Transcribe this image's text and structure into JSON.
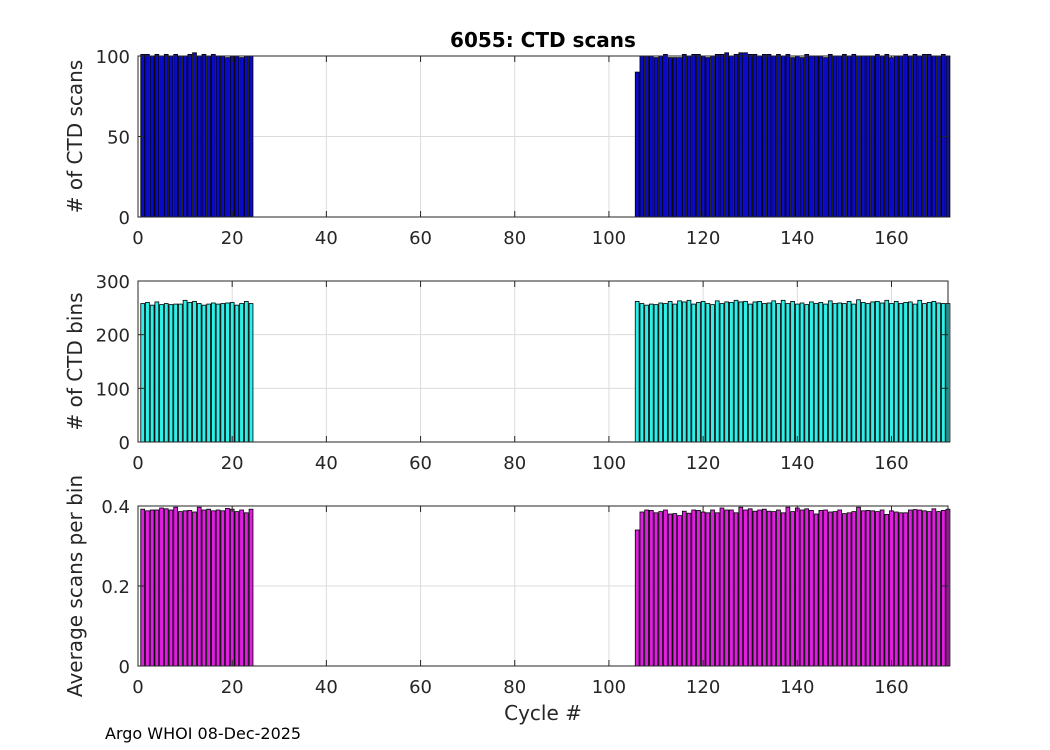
{
  "footer": "Argo WHOI 08-Dec-2025",
  "colors": {
    "scans": "#0a0ac8",
    "bins": "#2ef0e8",
    "avg": "#e01ee0",
    "edge": "#000000",
    "grid": "#dcdcdc"
  },
  "chart_data": [
    {
      "type": "bar",
      "title": "6055: CTD scans",
      "xlabel": "",
      "ylabel": "# of CTD scans",
      "xlim": [
        0,
        172
      ],
      "ylim": [
        0,
        100
      ],
      "xticks": [
        "0",
        "20",
        "40",
        "60",
        "80",
        "100",
        "120",
        "140",
        "160"
      ],
      "yticks": [
        "0",
        "50",
        "100"
      ],
      "series": [
        {
          "name": "cycles 1-24",
          "x_start": 1,
          "values": [
            101,
            101,
            100,
            101,
            100,
            101,
            100,
            101,
            100,
            100,
            101,
            102,
            100,
            101,
            100,
            101,
            100,
            100,
            99,
            100,
            100,
            99,
            100,
            100
          ]
        },
        {
          "name": "cycles 106-172",
          "x_start": 106,
          "values": [
            90,
            100,
            100,
            100,
            99,
            100,
            101,
            99,
            99,
            99,
            101,
            100,
            101,
            101,
            100,
            99,
            100,
            101,
            101,
            102,
            100,
            101,
            102,
            102,
            101,
            101,
            100,
            101,
            101,
            100,
            101,
            100,
            101,
            99,
            100,
            99,
            101,
            100,
            100,
            100,
            99,
            101,
            100,
            100,
            101,
            100,
            101,
            100,
            100,
            100,
            100,
            101,
            100,
            101,
            99,
            100,
            100,
            101,
            100,
            101,
            100,
            101,
            101,
            100,
            100,
            101,
            100
          ]
        }
      ]
    },
    {
      "type": "bar",
      "title": "",
      "xlabel": "",
      "ylabel": "# of CTD bins",
      "xlim": [
        0,
        172
      ],
      "ylim": [
        0,
        300
      ],
      "xticks": [
        "0",
        "20",
        "40",
        "60",
        "80",
        "100",
        "120",
        "140",
        "160"
      ],
      "yticks": [
        "0",
        "100",
        "200",
        "300"
      ],
      "series": [
        {
          "name": "cycles 1-24",
          "x_start": 1,
          "values": [
            258,
            260,
            255,
            261,
            256,
            258,
            256,
            257,
            257,
            264,
            260,
            262,
            258,
            255,
            257,
            259,
            257,
            258,
            259,
            260,
            255,
            258,
            262,
            258
          ]
        },
        {
          "name": "cycles 106-172",
          "x_start": 106,
          "values": [
            262,
            258,
            255,
            257,
            256,
            259,
            258,
            262,
            257,
            263,
            261,
            264,
            257,
            260,
            262,
            258,
            256,
            263,
            258,
            261,
            260,
            264,
            261,
            262,
            257,
            261,
            262,
            258,
            259,
            263,
            258,
            264,
            258,
            262,
            257,
            259,
            256,
            261,
            258,
            260,
            257,
            263,
            258,
            259,
            258,
            262,
            257,
            265,
            260,
            258,
            261,
            262,
            259,
            264,
            258,
            262,
            258,
            260,
            261,
            257,
            264,
            258,
            260,
            262,
            259,
            258,
            258
          ]
        }
      ]
    },
    {
      "type": "bar",
      "title": "",
      "xlabel": "Cycle #",
      "ylabel": "Average scans per bin",
      "xlim": [
        0,
        172
      ],
      "ylim": [
        0,
        0.4
      ],
      "xticks": [
        "0",
        "20",
        "40",
        "60",
        "80",
        "100",
        "120",
        "140",
        "160"
      ],
      "yticks": [
        "0",
        "0.2",
        "0.4"
      ],
      "series": [
        {
          "name": "cycles 1-24",
          "x_start": 1,
          "values": [
            0.392,
            0.388,
            0.39,
            0.39,
            0.395,
            0.393,
            0.39,
            0.397,
            0.386,
            0.388,
            0.389,
            0.385,
            0.397,
            0.39,
            0.392,
            0.388,
            0.39,
            0.388,
            0.394,
            0.392,
            0.386,
            0.39,
            0.383,
            0.392
          ]
        },
        {
          "name": "cycles 106-172",
          "x_start": 106,
          "values": [
            0.34,
            0.385,
            0.39,
            0.389,
            0.383,
            0.386,
            0.39,
            0.38,
            0.381,
            0.376,
            0.387,
            0.382,
            0.39,
            0.389,
            0.385,
            0.383,
            0.39,
            0.383,
            0.395,
            0.39,
            0.39,
            0.383,
            0.397,
            0.39,
            0.393,
            0.387,
            0.39,
            0.392,
            0.387,
            0.386,
            0.39,
            0.383,
            0.397,
            0.386,
            0.395,
            0.39,
            0.393,
            0.389,
            0.38,
            0.389,
            0.39,
            0.385,
            0.386,
            0.39,
            0.381,
            0.383,
            0.386,
            0.397,
            0.388,
            0.389,
            0.388,
            0.386,
            0.39,
            0.379,
            0.388,
            0.385,
            0.383,
            0.383,
            0.39,
            0.391,
            0.39,
            0.388,
            0.386,
            0.393,
            0.386,
            0.389,
            0.392
          ]
        }
      ]
    }
  ]
}
